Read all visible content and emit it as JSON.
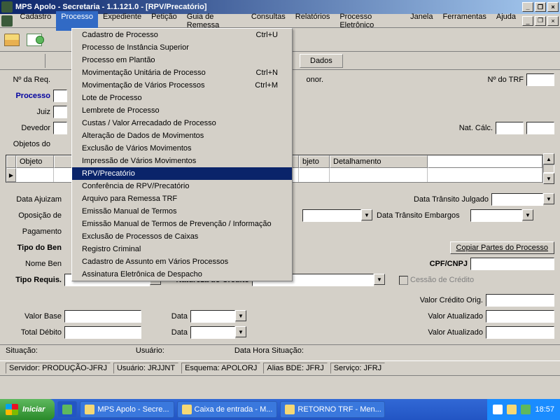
{
  "title": "MPS Apolo - Secretaria - 1.1.121.0 - [RPV/Precatório]",
  "menu": [
    "Cadastro",
    "Processo",
    "Expediente",
    "Petição",
    "Guia de Remessa",
    "Consultas",
    "Relatórios",
    "Processo Eletrônico",
    "Janela",
    "Ferramentas",
    "Ajuda"
  ],
  "menu_active_index": 1,
  "dropdown": [
    {
      "label": "Cadastro de Processo",
      "accel": "Ctrl+U"
    },
    {
      "label": "Processo de Instância Superior",
      "accel": ""
    },
    {
      "label": "Processo em Plantão",
      "accel": ""
    },
    {
      "label": "Movimentação Unitária de Processo",
      "accel": "Ctrl+N"
    },
    {
      "label": "Movimentação de Vários Processos",
      "accel": "Ctrl+M"
    },
    {
      "label": "Lote de Processo",
      "accel": ""
    },
    {
      "label": "Lembrete de Processo",
      "accel": ""
    },
    {
      "label": "Custas / Valor Arrecadado de Processo",
      "accel": ""
    },
    {
      "label": "Alteração de Dados de Movimentos",
      "accel": ""
    },
    {
      "label": "Exclusão de Vários Movimentos",
      "accel": ""
    },
    {
      "label": "Impressão de Vários Movimentos",
      "accel": ""
    },
    {
      "label": "RPV/Precatório",
      "accel": ""
    },
    {
      "label": "Conferência de RPV/Precatório",
      "accel": ""
    },
    {
      "label": "Arquivo para Remessa TRF",
      "accel": ""
    },
    {
      "label": "Emissão Manual de Termos",
      "accel": ""
    },
    {
      "label": "Emissão Manual de Termos de Prevenção / Informação",
      "accel": ""
    },
    {
      "label": "Exclusão de Processos de Caixas",
      "accel": ""
    },
    {
      "label": "Registro Criminal",
      "accel": ""
    },
    {
      "label": "Cadastro de Assunto em Vários Processos",
      "accel": ""
    },
    {
      "label": "Assinatura Eletrônica de Despacho",
      "accel": ""
    }
  ],
  "dropdown_selected": 11,
  "tab": "Dados",
  "labels": {
    "num_req": "Nº da Req.",
    "num_trf": "Nº do TRF",
    "processo": "Processo",
    "juiz": "Juiz",
    "devedor": "Devedor",
    "nat_calc": "Nat. Cálc.",
    "objetos": "Objetos do",
    "obj": "Objeto",
    "det": "Detalhamento",
    "bj": "bjeto",
    "data_ajuiz": "Data Ajuizam",
    "transito": "Data Trânsito Julgado",
    "oposicao": "Oposição de",
    "embargos": "Data Trânsito Embargos",
    "pagamento": "Pagamento",
    "tipo_ben": "Tipo do Ben",
    "copiar": "Copiar Partes do Processo",
    "nome_ben": "Nome Ben",
    "cpf": "CPF/CNPJ",
    "tipo_req": "Tipo Requis.",
    "nat_cred": "Natureza do Crédito",
    "cessao": "Cessão de Crédito",
    "valor_orig": "Valor Crédito Orig.",
    "valor_base": "Valor Base",
    "data": "Data",
    "valor_atual": "Valor Atualizado",
    "total_deb": "Total Débito",
    "situacao": "Situação:",
    "usuario": "Usuário:",
    "datahora": "Data Hora Situação:",
    "honor": "onor."
  },
  "server": {
    "servidor": "Servidor: PRODUÇÃO-JFRJ",
    "usuario": "Usuário: JRJJNT",
    "esquema": "Esquema: APOLORJ",
    "alias": "Alias BDE: JFRJ",
    "servico": "Serviço: JFRJ"
  },
  "taskbar": {
    "start": "Iniciar",
    "tasks": [
      "MPS Apolo - Secre...",
      "Caixa de entrada - M...",
      "RETORNO TRF - Men..."
    ],
    "time": "18:57"
  }
}
